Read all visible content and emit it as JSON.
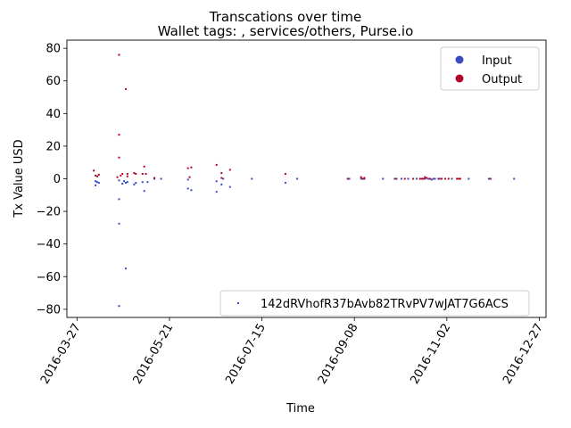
{
  "chart_data": {
    "type": "scatter",
    "title": "Transcations over time",
    "subtitle": "Wallet tags: , services/others, Purse.io",
    "xlabel": "Time",
    "ylabel": "Tx Value USD",
    "xlim": [
      "2016-03-21",
      "2016-12-31"
    ],
    "ylim": [
      -85,
      85
    ],
    "x_ticks": [
      "2016-03-27",
      "2016-05-21",
      "2016-07-15",
      "2016-09-08",
      "2016-11-02",
      "2016-12-27"
    ],
    "y_ticks": [
      -80,
      -60,
      -40,
      -20,
      0,
      20,
      40,
      60,
      80
    ],
    "legend_position": "top-right",
    "legend": [
      {
        "name": "Input",
        "color": "#3b4cc0"
      },
      {
        "name": "Output",
        "color": "#b40426"
      }
    ],
    "second_legend_position": "bottom-right",
    "second_legend": {
      "name": "142dRVhofR37bAvb82TRvPV7wJAT7G6ACS",
      "color": "#3b4cc0"
    },
    "series": [
      {
        "name": "Input",
        "color": "#3b4cc0",
        "points": [
          [
            "2016-04-07",
            -4
          ],
          [
            "2016-04-07",
            -1.5
          ],
          [
            "2016-04-08",
            -2
          ],
          [
            "2016-04-09",
            -2.5
          ],
          [
            "2016-04-21",
            -78
          ],
          [
            "2016-04-21",
            -27.5
          ],
          [
            "2016-04-21",
            -12.5
          ],
          [
            "2016-04-21",
            -1
          ],
          [
            "2016-04-23",
            -3
          ],
          [
            "2016-04-24",
            -1.5
          ],
          [
            "2016-04-25",
            -55
          ],
          [
            "2016-04-25",
            -2.5
          ],
          [
            "2016-04-26",
            -2
          ],
          [
            "2016-04-30",
            -3.5
          ],
          [
            "2016-05-01",
            -2.5
          ],
          [
            "2016-05-05",
            -2
          ],
          [
            "2016-05-06",
            -7.5
          ],
          [
            "2016-05-08",
            -2
          ],
          [
            "2016-05-12",
            0
          ],
          [
            "2016-05-16",
            0
          ],
          [
            "2016-06-01",
            -6
          ],
          [
            "2016-06-01",
            -0.5
          ],
          [
            "2016-06-03",
            -7
          ],
          [
            "2016-06-18",
            -8
          ],
          [
            "2016-06-18",
            -1.5
          ],
          [
            "2016-06-21",
            -3.5
          ],
          [
            "2016-06-22",
            0
          ],
          [
            "2016-06-26",
            -5
          ],
          [
            "2016-07-09",
            0
          ],
          [
            "2016-07-29",
            -2.5
          ],
          [
            "2016-08-05",
            0
          ],
          [
            "2016-09-05",
            0
          ],
          [
            "2016-09-12",
            0
          ],
          [
            "2016-09-14",
            0
          ],
          [
            "2016-09-25",
            0
          ],
          [
            "2016-10-02",
            0
          ],
          [
            "2016-10-06",
            0
          ],
          [
            "2016-10-10",
            0
          ],
          [
            "2016-10-15",
            0
          ],
          [
            "2016-10-20",
            0
          ],
          [
            "2016-10-22",
            0
          ],
          [
            "2016-10-24",
            -0.5
          ],
          [
            "2016-10-25",
            0
          ],
          [
            "2016-10-26",
            0
          ],
          [
            "2016-10-29",
            0
          ],
          [
            "2016-11-05",
            0
          ],
          [
            "2016-11-15",
            0
          ],
          [
            "2016-11-27",
            0
          ],
          [
            "2016-12-12",
            0
          ]
        ]
      },
      {
        "name": "Output",
        "color": "#b40426",
        "points": [
          [
            "2016-04-06",
            5
          ],
          [
            "2016-04-07",
            2
          ],
          [
            "2016-04-08",
            1.5
          ],
          [
            "2016-04-09",
            2.5
          ],
          [
            "2016-04-20",
            1
          ],
          [
            "2016-04-21",
            76
          ],
          [
            "2016-04-21",
            27
          ],
          [
            "2016-04-21",
            13
          ],
          [
            "2016-04-22",
            2
          ],
          [
            "2016-04-23",
            3
          ],
          [
            "2016-04-25",
            55
          ],
          [
            "2016-04-26",
            3
          ],
          [
            "2016-04-26",
            1.5
          ],
          [
            "2016-04-30",
            3.5
          ],
          [
            "2016-05-01",
            3
          ],
          [
            "2016-05-05",
            3
          ],
          [
            "2016-05-06",
            7.5
          ],
          [
            "2016-05-07",
            3
          ],
          [
            "2016-05-12",
            0.5
          ],
          [
            "2016-06-01",
            6.5
          ],
          [
            "2016-06-02",
            1
          ],
          [
            "2016-06-03",
            7
          ],
          [
            "2016-06-18",
            8.5
          ],
          [
            "2016-06-21",
            3.5
          ],
          [
            "2016-06-21",
            0.5
          ],
          [
            "2016-06-26",
            5.5
          ],
          [
            "2016-07-29",
            3
          ],
          [
            "2016-09-04",
            0
          ],
          [
            "2016-09-12",
            1
          ],
          [
            "2016-09-13",
            0
          ],
          [
            "2016-09-14",
            0.5
          ],
          [
            "2016-10-03",
            0
          ],
          [
            "2016-10-08",
            0
          ],
          [
            "2016-10-13",
            0
          ],
          [
            "2016-10-17",
            0
          ],
          [
            "2016-10-18",
            0
          ],
          [
            "2016-10-19",
            0
          ],
          [
            "2016-10-20",
            1
          ],
          [
            "2016-10-21",
            0.5
          ],
          [
            "2016-10-23",
            0
          ],
          [
            "2016-10-28",
            0
          ],
          [
            "2016-10-30",
            0
          ],
          [
            "2016-11-01",
            0
          ],
          [
            "2016-11-03",
            0
          ],
          [
            "2016-11-08",
            0
          ],
          [
            "2016-11-09",
            0
          ],
          [
            "2016-11-10",
            0
          ],
          [
            "2016-11-28",
            0
          ]
        ]
      }
    ]
  }
}
